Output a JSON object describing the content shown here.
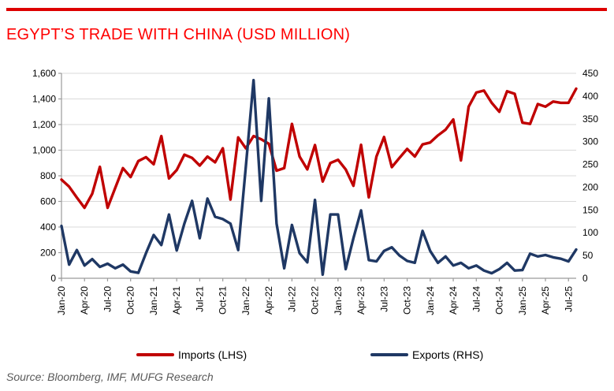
{
  "header": {
    "title": "EGYPT’S TRADE WITH CHINA (USD MILLION)"
  },
  "footer": {
    "source": "Source: Bloomberg, IMF, MUFG Research"
  },
  "colors": {
    "title_red": "#ff0000",
    "top_rule_red": "#de0000",
    "imports_line": "#c00000",
    "exports_line": "#1f3864",
    "gridline": "#d9d9d9",
    "axis_line": "#9b9b9b",
    "source_gray": "#595959"
  },
  "chart_data": {
    "type": "line",
    "title": "EGYPT’S TRADE WITH CHINA (USD MILLION)",
    "grid": true,
    "legend_position": "bottom",
    "x_tick_every": 3,
    "x": [
      "Jan-20",
      "Feb-20",
      "Mar-20",
      "Apr-20",
      "May-20",
      "Jun-20",
      "Jul-20",
      "Aug-20",
      "Sep-20",
      "Oct-20",
      "Nov-20",
      "Dec-20",
      "Jan-21",
      "Feb-21",
      "Mar-21",
      "Apr-21",
      "May-21",
      "Jun-21",
      "Jul-21",
      "Aug-21",
      "Sep-21",
      "Oct-21",
      "Nov-21",
      "Dec-21",
      "Jan-22",
      "Feb-22",
      "Mar-22",
      "Apr-22",
      "May-22",
      "Jun-22",
      "Jul-22",
      "Aug-22",
      "Sep-22",
      "Oct-22",
      "Nov-22",
      "Dec-22",
      "Jan-23",
      "Feb-23",
      "Mar-23",
      "Apr-23",
      "May-23",
      "Jun-23",
      "Jul-23",
      "Aug-23",
      "Sep-23",
      "Oct-23",
      "Nov-23",
      "Dec-23",
      "Jan-24",
      "Feb-24",
      "Mar-24",
      "Apr-24",
      "May-24",
      "Jun-24",
      "Jul-24",
      "Aug-24",
      "Sep-24",
      "Oct-24",
      "Nov-24",
      "Dec-24",
      "Jan-25",
      "Feb-25",
      "Mar-25",
      "Apr-25",
      "May-25",
      "Jun-25",
      "Jul-25",
      "Aug-25"
    ],
    "left_axis": {
      "min": 0,
      "max": 1600,
      "step": 200,
      "tick_labels": [
        "0",
        "200",
        "400",
        "600",
        "800",
        "1,000",
        "1,200",
        "1,400",
        "1,600"
      ]
    },
    "right_axis": {
      "min": 0,
      "max": 450,
      "step": 50,
      "tick_labels": [
        "0",
        "50",
        "100",
        "150",
        "200",
        "250",
        "300",
        "350",
        "400",
        "450"
      ]
    },
    "series": [
      {
        "name": "Imports (LHS)",
        "axis": "left",
        "color": "#c00000",
        "values": [
          770,
          715,
          630,
          550,
          660,
          870,
          550,
          705,
          860,
          790,
          915,
          945,
          890,
          1110,
          780,
          845,
          965,
          940,
          880,
          950,
          905,
          1015,
          615,
          1100,
          1015,
          1110,
          1085,
          1050,
          840,
          860,
          1205,
          950,
          850,
          1040,
          755,
          900,
          925,
          850,
          722,
          1042,
          632,
          950,
          1103,
          868,
          940,
          1010,
          950,
          1045,
          1060,
          1115,
          1160,
          1240,
          920,
          1340,
          1450,
          1465,
          1370,
          1300,
          1460,
          1440,
          1215,
          1205,
          1360,
          1340,
          1380,
          1370,
          1370,
          1480
        ]
      },
      {
        "name": "Exports (RHS)",
        "axis": "right",
        "color": "#1f3864",
        "values": [
          115,
          30,
          62,
          28,
          42,
          25,
          32,
          22,
          30,
          15,
          12,
          55,
          95,
          73,
          140,
          61,
          120,
          170,
          88,
          175,
          135,
          130,
          120,
          62,
          245,
          435,
          170,
          395,
          120,
          22,
          117,
          55,
          35,
          172,
          8,
          140,
          140,
          20,
          88,
          149,
          40,
          37,
          60,
          68,
          50,
          38,
          34,
          104,
          60,
          34,
          48,
          28,
          34,
          22,
          28,
          17,
          11,
          20,
          34,
          17,
          18,
          54,
          48,
          51,
          46,
          43,
          37,
          63
        ]
      }
    ]
  }
}
